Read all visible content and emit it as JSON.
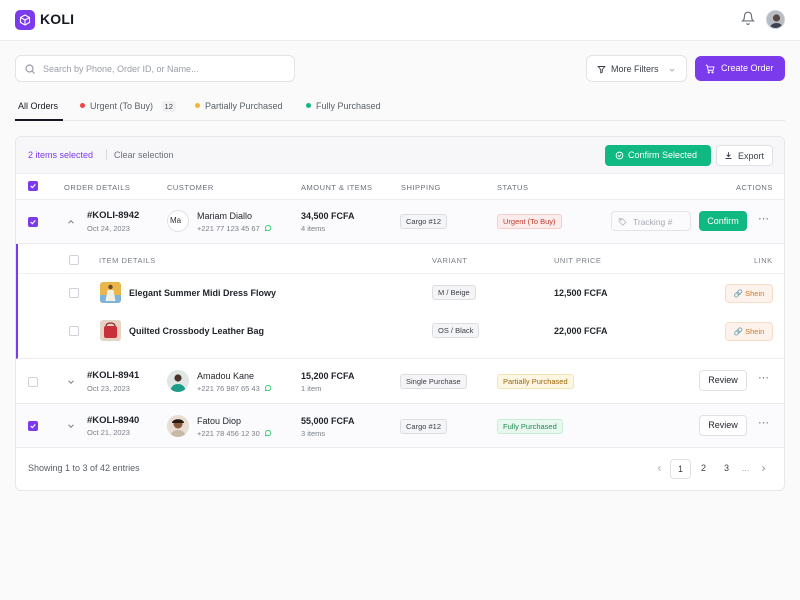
{
  "app": {
    "brand": "KOLI"
  },
  "toolbar": {
    "search_placeholder": "Search by Phone, Order ID, or Name...",
    "filters_label": "More Filters",
    "create_label": "Create Order"
  },
  "tabs": [
    {
      "label": "All Orders",
      "active": true
    },
    {
      "label": "Urgent (To Buy)",
      "count": "12",
      "dot_color": "#ef4444"
    },
    {
      "label": "Partially Purchased",
      "dot_color": "#f5b731"
    },
    {
      "label": "Fully Purchased",
      "dot_color": "#10b981"
    }
  ],
  "selection": {
    "count_text": "2 items selected",
    "clear_label": "Clear selection",
    "confirm_selected_label": "Confirm Selected",
    "export_label": "Export"
  },
  "columns": {
    "order": "ORDER DETAILS",
    "customer": "CUSTOMER",
    "amount": "AMOUNT & ITEMS",
    "shipping": "SHIPPING",
    "status": "STATUS",
    "actions": "ACTIONS"
  },
  "orders": [
    {
      "id": "#KOLI-8942",
      "date": "Oct 24, 2023",
      "customer": "Mariam Diallo",
      "phone": "+221 77 123 45 67",
      "avatar_alt": "Ma",
      "amount": "34,500 FCFA",
      "items": "4 items",
      "shipping": "Cargo #12",
      "status": "Urgent (To Buy)",
      "tracking_placeholder": "Tracking #",
      "action": "Confirm",
      "selected": true,
      "expanded": true
    },
    {
      "id": "#KOLI-8941",
      "date": "Oct 23, 2023",
      "customer": "Amadou Kane",
      "phone": "+221 76 987 65 43",
      "amount": "15,200 FCFA",
      "items": "1 item",
      "shipping": "Single Purchase",
      "status": "Partially Purchased",
      "action": "Review",
      "selected": false
    },
    {
      "id": "#KOLI-8940",
      "date": "Oct 21, 2023",
      "customer": "Fatou Diop",
      "phone": "+221 78 456 12 30",
      "amount": "55,000 FCFA",
      "items": "3 items",
      "shipping": "Cargo #12",
      "status": "Fully Purchased",
      "action": "Review",
      "selected": true
    }
  ],
  "item_columns": {
    "details": "ITEM DETAILS",
    "variant": "VARIANT",
    "price": "UNIT PRICE",
    "link": "LINK"
  },
  "order_items": [
    {
      "name": "Elegant Summer Midi Dress Flowy",
      "variant": "M / Beige",
      "price": "12,500 FCFA",
      "link": "Shein"
    },
    {
      "name": "Quilted Crossbody Leather Bag",
      "variant": "OS / Black",
      "price": "22,000 FCFA",
      "link": "Shein"
    }
  ],
  "pagination": {
    "summary": "Showing 1 to 3 of 42 entries",
    "pages": [
      "1",
      "2",
      "3"
    ],
    "ellipsis": "...",
    "current": "1"
  },
  "colors": {
    "accent": "#7c3aed",
    "success": "#10b981",
    "urgent": "#ef4444",
    "partial": "#f5b731"
  }
}
